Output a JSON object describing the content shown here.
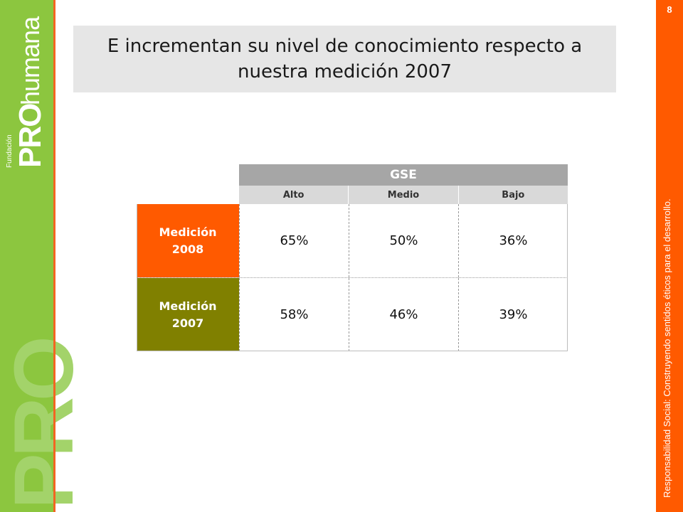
{
  "page_number": "8",
  "title": "E incrementan su nivel de conocimiento respecto a nuestra medición 2007",
  "logo": {
    "small_prefix": "Fundación",
    "pro": "PRO",
    "humana": "humana",
    "big": "PRO"
  },
  "tagline": "Responsabilidad Social: Construyendo sentidos éticos para el desarrollo.",
  "colors": {
    "green": "#8cc63f",
    "orange": "#ff5a00",
    "row_2008": "#ff5a00",
    "row_2007": "#808000"
  },
  "table": {
    "group_header": "GSE",
    "columns": [
      "Alto",
      "Medio",
      "Bajo"
    ],
    "rows": [
      {
        "label": "Medición\n2008",
        "values": [
          "65%",
          "50%",
          "36%"
        ]
      },
      {
        "label": "Medición\n2007",
        "values": [
          "58%",
          "46%",
          "39%"
        ]
      }
    ]
  }
}
